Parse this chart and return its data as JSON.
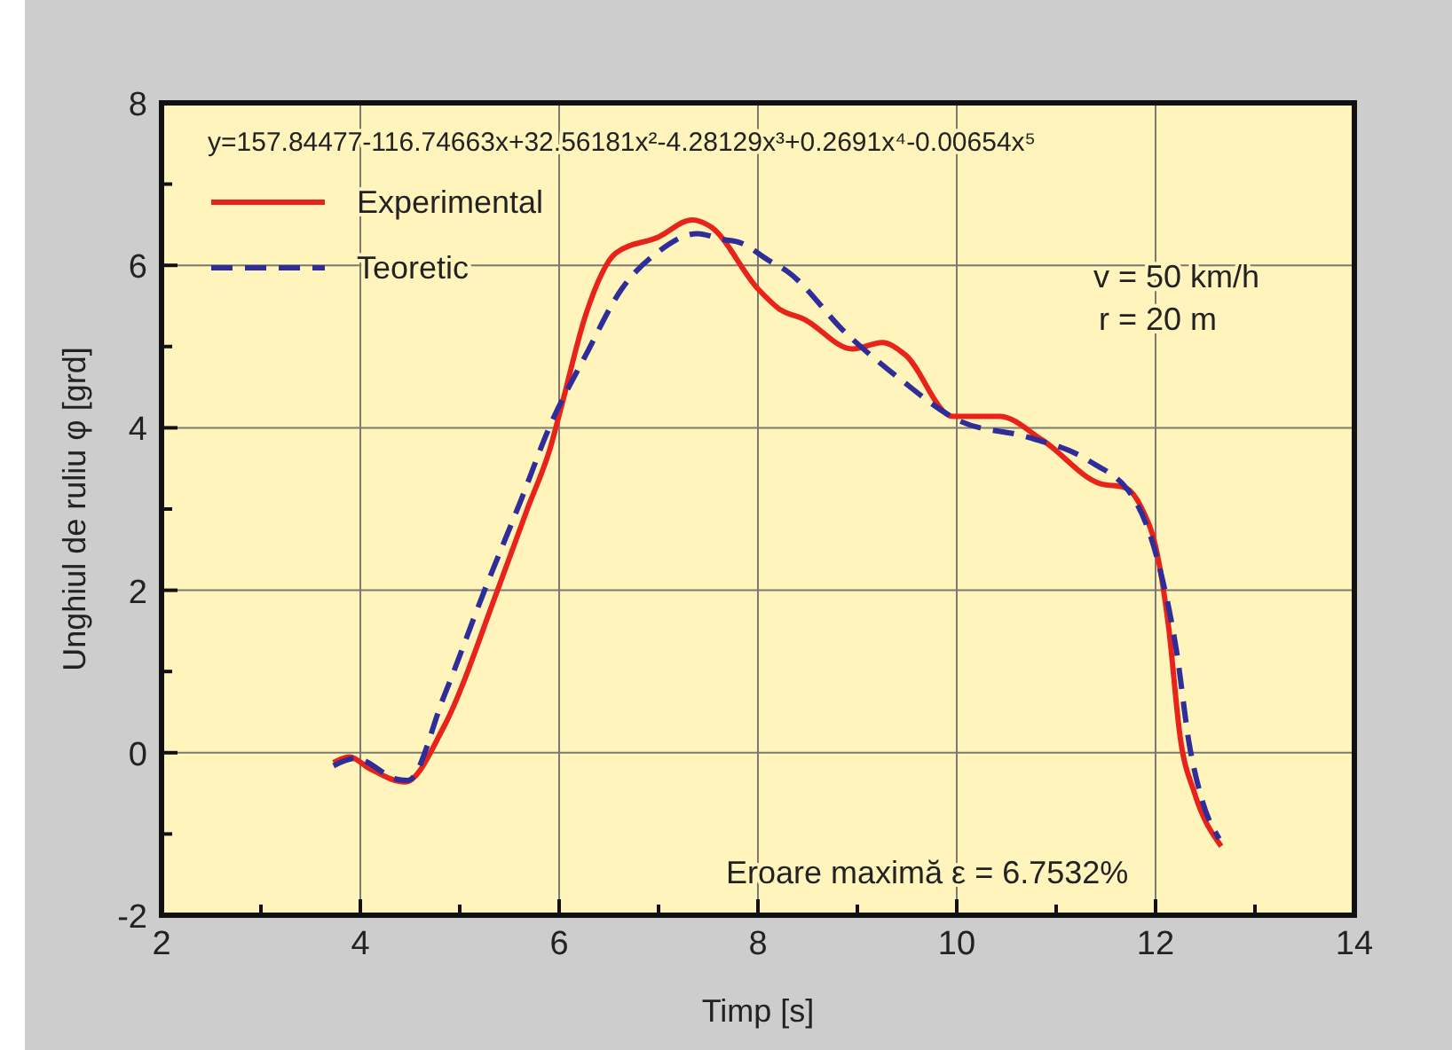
{
  "chart_data": {
    "type": "line",
    "xlabel": "Timp [s]",
    "ylabel": "Unghiul de ruliu φ [grd]",
    "xlim": [
      2,
      14
    ],
    "ylim": [
      -2,
      8
    ],
    "xticks": [
      2,
      {
        "value": 3,
        "label": null
      },
      4,
      {
        "value": 5,
        "label": null
      },
      6,
      {
        "value": 7,
        "label": null
      },
      8,
      {
        "value": 9,
        "label": null
      },
      10,
      {
        "value": 11,
        "label": null
      },
      12,
      {
        "value": 13,
        "label": null
      },
      14
    ],
    "yticks": [
      -2,
      {
        "value": -1,
        "label": null
      },
      0,
      {
        "value": 1,
        "label": null
      },
      2,
      {
        "value": 3,
        "label": null
      },
      4,
      {
        "value": 5,
        "label": null
      },
      6,
      {
        "value": 7,
        "label": null
      },
      8
    ],
    "grid": true,
    "legend": "top left",
    "series": [
      {
        "name": "Experimental",
        "color": "#e8231a",
        "line_style": "solid",
        "x": [
          3.73,
          3.89,
          4.1,
          4.45,
          4.84,
          5.38,
          5.68,
          5.91,
          6.02,
          6.27,
          6.57,
          7.0,
          7.34,
          7.52,
          8.0,
          8.23,
          8.46,
          8.95,
          9.25,
          9.48,
          9.96,
          10.43,
          10.86,
          11.45,
          11.68,
          11.86,
          12.02,
          12.13,
          12.25,
          12.39,
          12.66
        ],
        "values": [
          -0.12,
          -0.05,
          -0.2,
          -0.36,
          0.32,
          2.0,
          3.0,
          3.75,
          4.25,
          5.4,
          6.15,
          6.35,
          6.56,
          6.48,
          5.71,
          5.45,
          5.34,
          4.97,
          5.05,
          4.9,
          4.14,
          4.14,
          3.85,
          3.31,
          3.27,
          3.01,
          2.43,
          1.56,
          0.17,
          -0.49,
          -1.15
        ]
      },
      {
        "name": "Teoretic",
        "color": "#2e2d9a",
        "line_style": "dashed",
        "x": [
          3.73,
          3.95,
          4.38,
          4.48,
          4.84,
          5.25,
          5.61,
          5.91,
          6.27,
          6.63,
          6.98,
          7.39,
          7.64,
          7.82,
          8.11,
          8.29,
          8.89,
          9.43,
          10.02,
          10.73,
          11.32,
          11.8,
          12.04,
          12.21,
          12.34,
          12.46,
          12.64
        ],
        "values": [
          -0.16,
          -0.07,
          -0.33,
          -0.34,
          0.69,
          2.0,
          3.09,
          4.03,
          4.9,
          5.71,
          6.15,
          6.39,
          6.32,
          6.28,
          6.06,
          5.93,
          5.16,
          4.6,
          4.09,
          3.88,
          3.6,
          3.09,
          2.28,
          1.26,
          0.1,
          -0.55,
          -1.06
        ]
      }
    ],
    "annotations": [
      "y=157.84477-116.74663x+32.56181x²-4.28129x³+0.2691x⁴-0.00654x⁵",
      "v = 50 km/h",
      "r = 20 m",
      "Eroare maximă ε = 6.7532%"
    ]
  }
}
